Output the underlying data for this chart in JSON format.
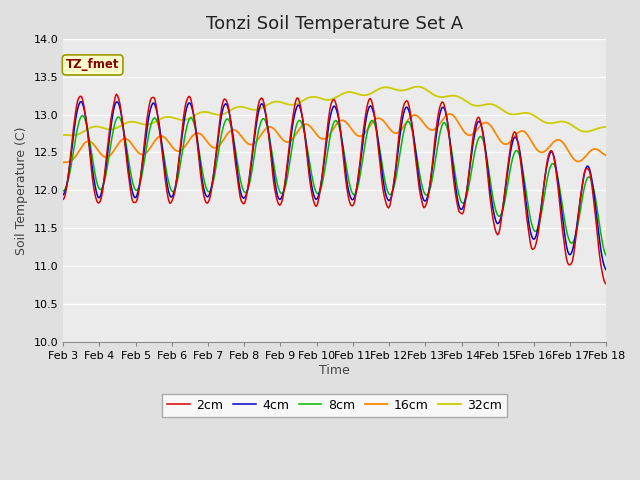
{
  "title": "Tonzi Soil Temperature Set A",
  "xlabel": "Time",
  "ylabel": "Soil Temperature (C)",
  "ylim": [
    10.0,
    14.0
  ],
  "yticks": [
    10.0,
    10.5,
    11.0,
    11.5,
    12.0,
    12.5,
    13.0,
    13.5,
    14.0
  ],
  "date_labels": [
    "Feb 3",
    "Feb 4",
    "Feb 5",
    "Feb 6",
    "Feb 7",
    "Feb 8",
    "Feb 9",
    "Feb 10",
    "Feb 11",
    "Feb 12",
    "Feb 13",
    "Feb 14",
    "Feb 15",
    "Feb 16",
    "Feb 17",
    "Feb 18"
  ],
  "series_colors": [
    "#dd0000",
    "#0000cc",
    "#00bb00",
    "#ff8800",
    "#cccc00"
  ],
  "series_labels": [
    "2cm",
    "4cm",
    "8cm",
    "16cm",
    "32cm"
  ],
  "legend_label": "TZ_fmet",
  "legend_bg": "#ffffcc",
  "legend_border_color": "#999900",
  "legend_text_color": "#880000",
  "fig_bg_color": "#e0e0e0",
  "plot_bg_color": "#ebebeb",
  "title_fontsize": 13,
  "axis_label_fontsize": 9,
  "tick_fontsize": 8,
  "n_points": 480
}
